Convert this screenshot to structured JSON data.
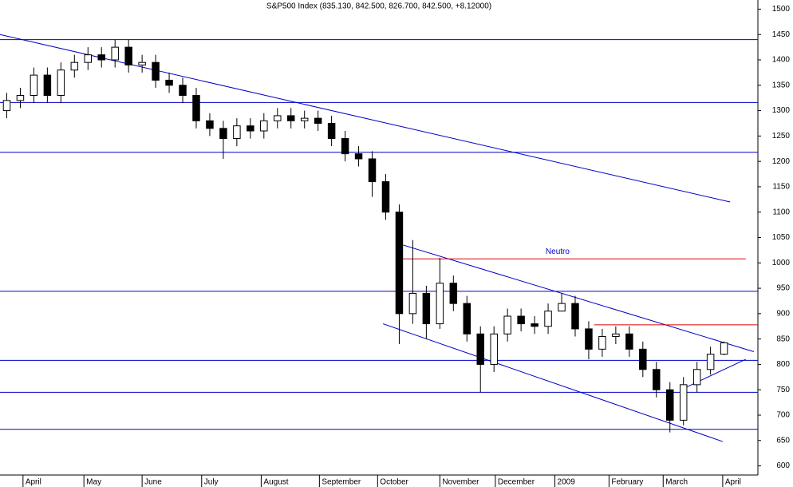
{
  "chart_data": {
    "type": "candlestick",
    "title": "S&P500 Index (835.130, 842.500, 826.700, 842.500, +8.12000)",
    "x": [
      0.5,
      1.5,
      2.5,
      3.5,
      4.5,
      5.5,
      6.5,
      7.5,
      8.5,
      9.5,
      10.5,
      11.5,
      12.5,
      13.5,
      14.5,
      15.5,
      16.5,
      17.5,
      18.5,
      19.5,
      20.5,
      21.5,
      22.5,
      23.5,
      24.5,
      25.5,
      26.5,
      27.5,
      28.5,
      29.5,
      30.5,
      31.5,
      32.5,
      33.5,
      34.5,
      35.5,
      36.5,
      37.5,
      38.5,
      39.5,
      40.5,
      41.5,
      42.5,
      43.5,
      44.5,
      45.5,
      46.5,
      47.5,
      48.5,
      49.5,
      50.5,
      51.5,
      52.5,
      53.5
    ],
    "open": [
      1300,
      1320,
      1330,
      1370,
      1330,
      1380,
      1395,
      1410,
      1400,
      1425,
      1390,
      1395,
      1360,
      1350,
      1330,
      1280,
      1265,
      1245,
      1270,
      1260,
      1280,
      1290,
      1280,
      1285,
      1275,
      1245,
      1215,
      1205,
      1160,
      1100,
      900,
      940,
      880,
      960,
      920,
      860,
      800,
      860,
      895,
      880,
      875,
      905,
      920,
      870,
      830,
      855,
      860,
      830,
      790,
      750,
      690,
      760,
      790,
      820
    ],
    "high": [
      1335,
      1345,
      1385,
      1385,
      1395,
      1410,
      1425,
      1425,
      1440,
      1440,
      1410,
      1410,
      1375,
      1365,
      1345,
      1295,
      1280,
      1285,
      1285,
      1295,
      1305,
      1305,
      1300,
      1300,
      1290,
      1260,
      1230,
      1220,
      1175,
      1115,
      1045,
      955,
      1010,
      975,
      935,
      875,
      875,
      910,
      910,
      895,
      920,
      940,
      935,
      885,
      870,
      875,
      875,
      845,
      805,
      765,
      775,
      805,
      835,
      845
    ],
    "low": [
      1285,
      1305,
      1315,
      1315,
      1315,
      1365,
      1380,
      1385,
      1385,
      1375,
      1375,
      1345,
      1335,
      1315,
      1265,
      1250,
      1205,
      1230,
      1245,
      1245,
      1265,
      1265,
      1265,
      1260,
      1230,
      1200,
      1190,
      1130,
      1085,
      840,
      880,
      850,
      870,
      905,
      845,
      745,
      785,
      845,
      865,
      860,
      860,
      905,
      855,
      810,
      815,
      840,
      815,
      775,
      735,
      666,
      680,
      745,
      780,
      818
    ],
    "close": [
      1320,
      1330,
      1370,
      1330,
      1380,
      1395,
      1410,
      1400,
      1425,
      1390,
      1395,
      1360,
      1350,
      1330,
      1280,
      1265,
      1245,
      1270,
      1260,
      1280,
      1290,
      1280,
      1285,
      1275,
      1245,
      1215,
      1205,
      1160,
      1100,
      900,
      940,
      880,
      960,
      920,
      860,
      800,
      860,
      895,
      880,
      875,
      905,
      920,
      870,
      830,
      855,
      860,
      830,
      790,
      750,
      690,
      760,
      790,
      820,
      842.5
    ],
    "up_color": "#ffffff",
    "down_color": "#000000",
    "xlim": [
      0,
      56
    ],
    "xticks": [
      {
        "value": 1.7,
        "label": "April"
      },
      {
        "value": 6.2,
        "label": "May"
      },
      {
        "value": 10.5,
        "label": "June"
      },
      {
        "value": 14.9,
        "label": "July"
      },
      {
        "value": 19.3,
        "label": "August"
      },
      {
        "value": 23.6,
        "label": "September"
      },
      {
        "value": 27.9,
        "label": "October"
      },
      {
        "value": 32.5,
        "label": "November"
      },
      {
        "value": 36.6,
        "label": "December"
      },
      {
        "value": 41,
        "label": "2009"
      },
      {
        "value": 45,
        "label": "February"
      },
      {
        "value": 49,
        "label": "March"
      },
      {
        "value": 53.4,
        "label": "April"
      }
    ],
    "ylim": [
      582,
      1518
    ],
    "yticks": [
      600,
      650,
      700,
      750,
      800,
      850,
      900,
      950,
      1000,
      1050,
      1100,
      1150,
      1200,
      1250,
      1300,
      1350,
      1400,
      1450,
      1500
    ],
    "hlines": [
      {
        "value": 1440,
        "color": "#0000c8"
      },
      {
        "value": 1316,
        "color": "#0000c8"
      },
      {
        "value": 1218,
        "color": "#0000c8"
      },
      {
        "value": 944,
        "color": "#0000c8"
      },
      {
        "value": 808,
        "color": "#0000c8"
      },
      {
        "value": 745,
        "color": "#0000c8"
      },
      {
        "value": 672,
        "color": "#0000c8"
      }
    ],
    "segments": [
      {
        "x": [
          0,
          53.95
        ],
        "y": [
          1450,
          1120
        ],
        "color": "#0000c8"
      },
      {
        "x": [
          29.8,
          55.7
        ],
        "y": [
          1035,
          825
        ],
        "color": "#0000c8"
      },
      {
        "x": [
          28.3,
          53.4
        ],
        "y": [
          880,
          648
        ],
        "color": "#0000c8"
      },
      {
        "x": [
          50.7,
          55.1
        ],
        "y": [
          755,
          810
        ],
        "color": "#0000c8"
      },
      {
        "x": [
          29.5,
          55.1
        ],
        "y": [
          1008,
          1008
        ],
        "color": "#e00000"
      },
      {
        "x": [
          43.9,
          56
        ],
        "y": [
          878,
          878
        ],
        "color": "#e00000"
      }
    ],
    "annotations": [
      {
        "text": "Neutro",
        "x": 41.2,
        "y": 1022,
        "color": "#0000c8"
      }
    ]
  }
}
